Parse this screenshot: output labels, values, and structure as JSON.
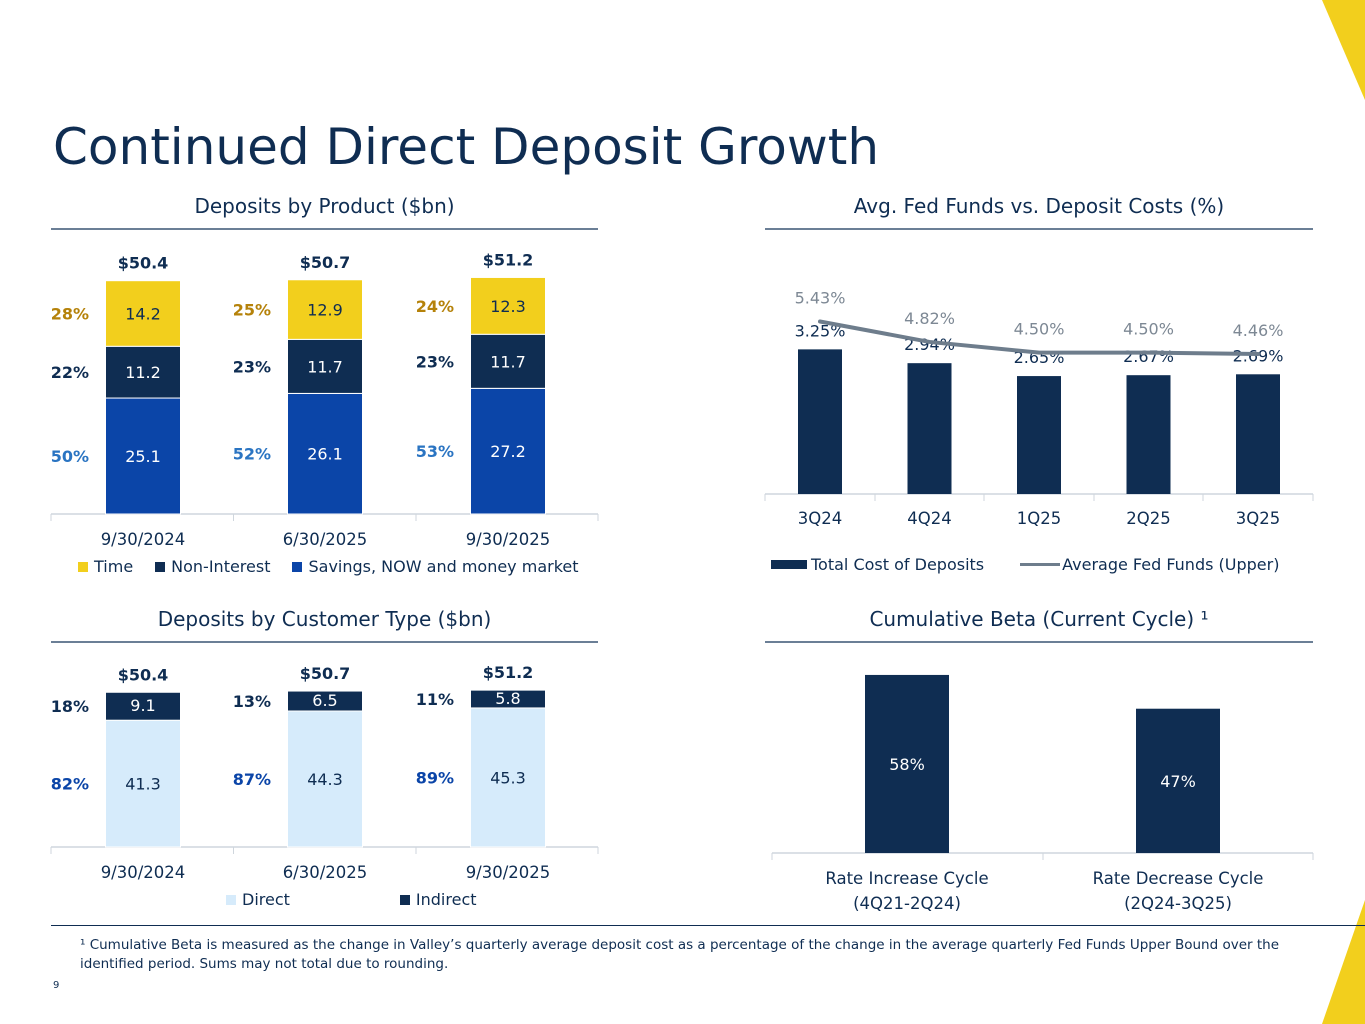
{
  "page": {
    "title": "Continued Direct Deposit Growth",
    "page_number": "9"
  },
  "footnote": "¹ Cumulative Beta is measured as the change in Valley’s quarterly average deposit cost as a percentage of the change in the average quarterly Fed Funds Upper Bound over the identified period. Sums may not total due to rounding.",
  "colors": {
    "navy": "#0f2d52",
    "yellow": "#f2cf1d",
    "blue": "#0b45a8",
    "light_blue": "#d6ebfb",
    "grey_line": "#6e7d8c",
    "pct_gold": "#b5820a",
    "pct_blue": "#2a74c2"
  },
  "chart_data": [
    {
      "id": "deposits_by_product",
      "type": "bar",
      "stacked": true,
      "title": "Deposits by Product ($bn)",
      "categories": [
        "9/30/2024",
        "6/30/2025",
        "9/30/2025"
      ],
      "totals": [
        "$50.4",
        "$50.7",
        "$51.2"
      ],
      "series": [
        {
          "name": "Savings, NOW and money market",
          "values": [
            25.1,
            26.1,
            27.2
          ],
          "labels": [
            "25.1",
            "26.1",
            "27.2"
          ],
          "pct": [
            "50%",
            "52%",
            "53%"
          ],
          "color": "#0b45a8"
        },
        {
          "name": "Non-Interest",
          "values": [
            11.2,
            11.7,
            11.7
          ],
          "labels": [
            "11.2",
            "11.7",
            "11.7"
          ],
          "pct": [
            "22%",
            "23%",
            "23%"
          ],
          "color": "#0f2d52"
        },
        {
          "name": "Time",
          "values": [
            14.2,
            12.9,
            12.3
          ],
          "labels": [
            "14.2",
            "12.9",
            "12.3"
          ],
          "pct": [
            "28%",
            "25%",
            "24%"
          ],
          "color": "#f2cf1d"
        }
      ],
      "legend": [
        "Time",
        "Non-Interest",
        "Savings, NOW and money market"
      ],
      "ylim": [
        0,
        52
      ]
    },
    {
      "id": "fed_funds_vs_costs",
      "type": "bar",
      "title": "Avg. Fed Funds vs. Deposit Costs (%)",
      "categories": [
        "3Q24",
        "4Q24",
        "1Q25",
        "2Q25",
        "3Q25"
      ],
      "series": [
        {
          "name": "Total Cost of Deposits",
          "kind": "bar",
          "values": [
            3.25,
            2.94,
            2.65,
            2.67,
            2.69
          ],
          "labels": [
            "3.25%",
            "2.94%",
            "2.65%",
            "2.67%",
            "2.69%"
          ]
        },
        {
          "name": "Average Fed Funds (Upper)",
          "kind": "line",
          "values": [
            5.43,
            4.82,
            4.5,
            4.5,
            4.46
          ],
          "labels": [
            "5.43%",
            "4.82%",
            "4.50%",
            "4.50%",
            "4.46%"
          ]
        }
      ],
      "legend": [
        "Total Cost of Deposits",
        "Average Fed Funds (Upper)"
      ],
      "ylim": [
        0,
        6
      ]
    },
    {
      "id": "deposits_by_customer",
      "type": "bar",
      "stacked": true,
      "title": "Deposits by Customer Type ($bn)",
      "categories": [
        "9/30/2024",
        "6/30/2025",
        "9/30/2025"
      ],
      "totals": [
        "$50.4",
        "$50.7",
        "$51.2"
      ],
      "series": [
        {
          "name": "Direct",
          "values": [
            41.3,
            44.3,
            45.3
          ],
          "labels": [
            "41.3",
            "44.3",
            "45.3"
          ],
          "pct": [
            "82%",
            "87%",
            "89%"
          ],
          "color": "#d6ebfb"
        },
        {
          "name": "Indirect",
          "values": [
            9.1,
            6.5,
            5.8
          ],
          "labels": [
            "9.1",
            "6.5",
            "5.8"
          ],
          "pct": [
            "18%",
            "13%",
            "11%"
          ],
          "color": "#0f2d52"
        }
      ],
      "legend": [
        "Direct",
        "Indirect"
      ],
      "ylim": [
        0,
        52
      ]
    },
    {
      "id": "cumulative_beta",
      "type": "bar",
      "title": "Cumulative Beta (Current Cycle) ¹",
      "categories": [
        {
          "line1": "Rate Increase Cycle",
          "line2": "(4Q21-2Q24)"
        },
        {
          "line1": "Rate Decrease Cycle",
          "line2": "(2Q24-3Q25)"
        }
      ],
      "values": [
        58,
        47
      ],
      "labels": [
        "58%",
        "47%"
      ],
      "ylim": [
        0,
        60
      ]
    }
  ]
}
